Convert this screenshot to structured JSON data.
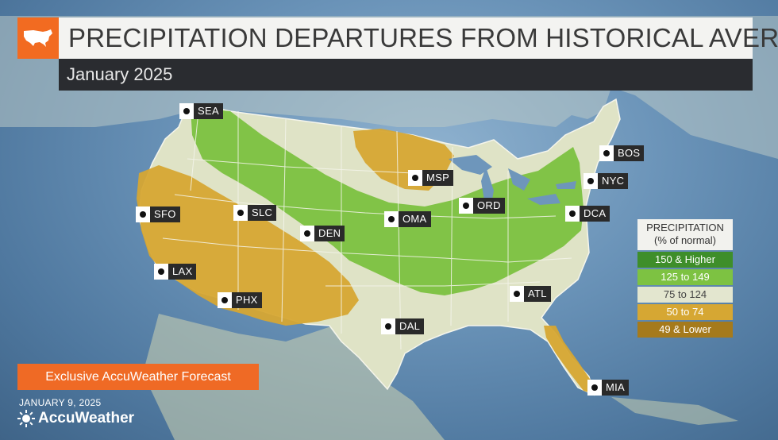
{
  "title": "PRECIPITATION DEPARTURES FROM HISTORICAL AVERAGES",
  "subtitle": "January 2025",
  "icons": {
    "title_icon": "usa-map-icon",
    "brand_icon": "sun-icon",
    "city_marker": "location-dot-icon"
  },
  "cities": [
    "SEA",
    "BOS",
    "MSP",
    "NYC",
    "SFO",
    "SLC",
    "OMA",
    "ORD",
    "DCA",
    "DEN",
    "LAX",
    "PHX",
    "ATL",
    "DAL",
    "MIA"
  ],
  "legend": {
    "title_line1": "PRECIPITATION",
    "title_line2": "(% of normal)",
    "items": [
      {
        "label": "150 & Higher",
        "color": "#3e8e2a",
        "text_color": "#ffffff"
      },
      {
        "label": "125 to 149",
        "color": "#7dc242",
        "text_color": "#ffffff"
      },
      {
        "label": "75 to 124",
        "color": "#e3e6cf",
        "text_color": "#444444"
      },
      {
        "label": "50 to 74",
        "color": "#d6a733",
        "text_color": "#ffffff"
      },
      {
        "label": "49 & Lower",
        "color": "#a57a1c",
        "text_color": "#ffffff"
      }
    ]
  },
  "exclusive_label": "Exclusive AccuWeather Forecast",
  "date": "JANUARY 9, 2025",
  "brand": "AccuWeather",
  "colors": {
    "accent_orange": "#f26b21",
    "near_normal": "#dfe3c6",
    "above_normal": "#7dc242",
    "below_normal": "#d6a733",
    "ocean": "#6a93b8"
  }
}
